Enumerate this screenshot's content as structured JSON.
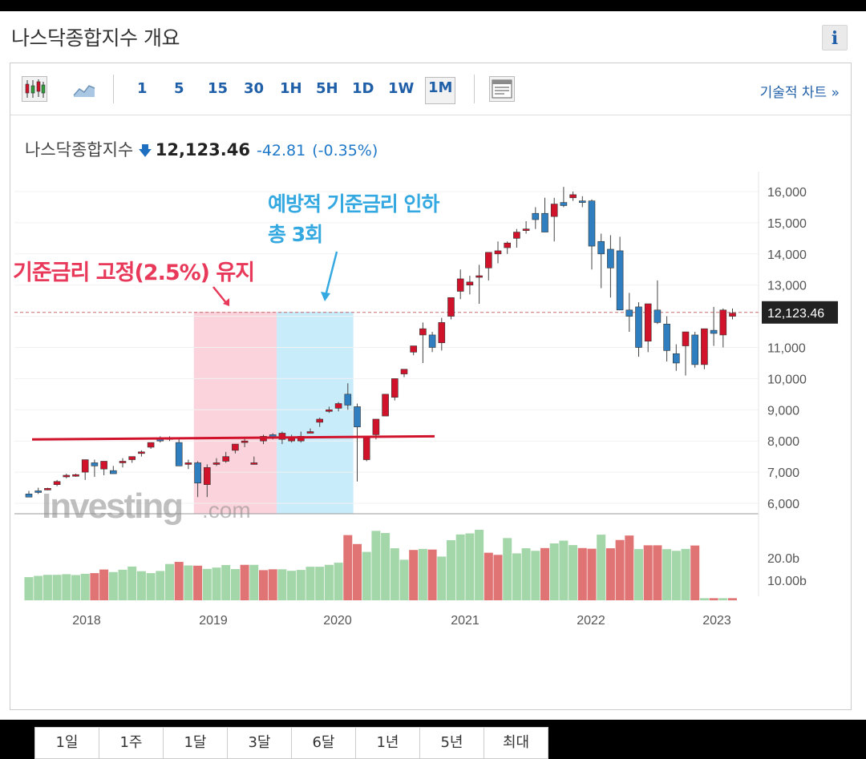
{
  "header": {
    "title": "나스닥종합지수 개요",
    "info_label": "i"
  },
  "toolbar": {
    "timeframes": [
      "1",
      "5",
      "15",
      "30",
      "1H",
      "5H",
      "1D",
      "1W",
      "1M"
    ],
    "active_timeframe": "1M",
    "tech_chart_label": "기술적 차트 »"
  },
  "quote": {
    "name": "나스닥종합지수",
    "price": "12,123.46",
    "change": "-42.81",
    "change_pct": "(-0.35%)"
  },
  "annotations": {
    "red_text": "기준금리 고정(2.5%) 유지",
    "blue_line1": "예방적 기준금리 인하",
    "blue_line2": "총 3회"
  },
  "watermark": {
    "brand": "Investing",
    "suffix": ".com"
  },
  "period_buttons": [
    "1일",
    "1주",
    "1달",
    "3달",
    "6달",
    "1년",
    "5년",
    "최대"
  ],
  "colors": {
    "up": "#2f7fc0",
    "down": "#d0132b",
    "vol_up": "#a3d6a8",
    "vol_down": "#e07373",
    "link": "#1f5fa8",
    "pink_band": "#fbd3dc",
    "blue_band": "#c9ecfb"
  },
  "chart_data": {
    "type": "candlestick",
    "interval": "1M",
    "price_axis": {
      "ticks": [
        6000,
        7000,
        8000,
        9000,
        10000,
        11000,
        12000,
        13000,
        14000,
        15000,
        16000
      ],
      "tick_labels": [
        "6,000",
        "7,000",
        "8,000",
        "9,000",
        "10,000",
        "11,000",
        "",
        "13,000",
        "14,000",
        "15,000",
        "16,000"
      ],
      "current_label": "12,123.46",
      "current_value": 12123.46
    },
    "volume_axis": {
      "tick_labels": [
        "20.0b",
        "10.00b"
      ],
      "ticks": [
        20,
        10
      ]
    },
    "x_labels": [
      "2018",
      "2019",
      "2020",
      "2021",
      "2022",
      "2023"
    ],
    "candles_ohlc": [
      [
        6300,
        6400,
        6200,
        6200
      ],
      [
        6400,
        6500,
        6300,
        6350
      ],
      [
        6450,
        6500,
        6420,
        6480
      ],
      [
        6600,
        6750,
        6550,
        6700
      ],
      [
        6850,
        6950,
        6800,
        6900
      ],
      [
        6900,
        6950,
        6850,
        6920
      ],
      [
        7000,
        7350,
        6750,
        7400
      ],
      [
        7300,
        7400,
        6850,
        7200
      ],
      [
        7100,
        7350,
        6900,
        7350
      ],
      [
        7050,
        7200,
        6950,
        6950
      ],
      [
        7300,
        7450,
        7150,
        7350
      ],
      [
        7400,
        7500,
        7300,
        7500
      ],
      [
        7600,
        7700,
        7500,
        7650
      ],
      [
        7800,
        7950,
        7750,
        7950
      ],
      [
        8100,
        8150,
        7950,
        8000
      ],
      [
        8100,
        8150,
        8000,
        8100
      ],
      [
        7950,
        8100,
        7200,
        7200
      ],
      [
        7250,
        7400,
        7100,
        7300
      ],
      [
        7300,
        7350,
        6200,
        6650
      ],
      [
        6600,
        7250,
        6200,
        7150
      ],
      [
        7300,
        7450,
        7200,
        7300
      ],
      [
        7350,
        7650,
        7300,
        7500
      ],
      [
        7700,
        7900,
        7600,
        7900
      ],
      [
        7950,
        8100,
        7800,
        8000
      ],
      [
        7300,
        7500,
        7300,
        7300
      ],
      [
        8000,
        8200,
        7900,
        8150
      ],
      [
        8200,
        8250,
        8050,
        8100
      ],
      [
        8050,
        8300,
        7900,
        8250
      ],
      [
        8000,
        8200,
        7950,
        8100
      ],
      [
        8000,
        8300,
        7950,
        8150
      ],
      [
        8300,
        8400,
        8250,
        8300
      ],
      [
        8600,
        8750,
        8450,
        8700
      ],
      [
        9000,
        9100,
        8900,
        9000
      ],
      [
        9050,
        9250,
        8950,
        9200
      ],
      [
        9500,
        9850,
        9000,
        9150
      ],
      [
        9100,
        9200,
        6700,
        8450
      ],
      [
        7400,
        8150,
        7350,
        8150
      ],
      [
        8200,
        8700,
        8050,
        8700
      ],
      [
        8800,
        9500,
        8800,
        9500
      ],
      [
        9400,
        10000,
        9300,
        10000
      ],
      [
        10150,
        10300,
        10050,
        10300
      ],
      [
        10850,
        11050,
        10750,
        11050
      ],
      [
        11400,
        11800,
        10500,
        11600
      ],
      [
        11400,
        11500,
        10850,
        11000
      ],
      [
        11150,
        11950,
        10900,
        11800
      ],
      [
        12000,
        12350,
        11900,
        12600
      ],
      [
        12800,
        13500,
        12550,
        13200
      ],
      [
        13000,
        13300,
        12700,
        13100
      ],
      [
        13250,
        13650,
        12400,
        13300
      ],
      [
        13550,
        13850,
        13150,
        14050
      ],
      [
        14000,
        14400,
        13700,
        14100
      ],
      [
        14200,
        14400,
        14000,
        14350
      ],
      [
        14500,
        14800,
        14200,
        14700
      ],
      [
        14750,
        15050,
        14650,
        14800
      ],
      [
        15300,
        15500,
        14800,
        15100
      ],
      [
        15300,
        15800,
        14800,
        14700
      ],
      [
        15200,
        15800,
        14400,
        15600
      ],
      [
        15650,
        16150,
        15500,
        15550
      ],
      [
        15800,
        16000,
        15700,
        15900
      ],
      [
        15700,
        15850,
        15500,
        15650
      ],
      [
        15700,
        15750,
        13500,
        14250
      ],
      [
        14400,
        14650,
        12900,
        14000
      ],
      [
        14150,
        14600,
        12600,
        13550
      ],
      [
        14100,
        14550,
        12900,
        12200
      ],
      [
        12200,
        12750,
        11500,
        12000
      ],
      [
        12300,
        12450,
        10700,
        11000
      ],
      [
        11200,
        12100,
        10850,
        12400
      ],
      [
        12200,
        13150,
        11750,
        11800
      ],
      [
        11750,
        12000,
        10550,
        10900
      ],
      [
        10800,
        11100,
        10250,
        10500
      ],
      [
        11050,
        11400,
        10100,
        11500
      ],
      [
        11400,
        11500,
        10350,
        10450
      ],
      [
        10450,
        11550,
        10300,
        11600
      ],
      [
        11550,
        12300,
        11050,
        11450
      ],
      [
        11400,
        12250,
        11000,
        12200
      ],
      [
        12000,
        12250,
        11900,
        12100
      ]
    ],
    "volume": [
      {
        "v": 10.9,
        "d": "up"
      },
      {
        "v": 11.5,
        "d": "up"
      },
      {
        "v": 12.0,
        "d": "up"
      },
      {
        "v": 12.0,
        "d": "up"
      },
      {
        "v": 12.3,
        "d": "up"
      },
      {
        "v": 11.9,
        "d": "up"
      },
      {
        "v": 12.5,
        "d": "up"
      },
      {
        "v": 12.8,
        "d": "down"
      },
      {
        "v": 14.5,
        "d": "down"
      },
      {
        "v": 13.3,
        "d": "up"
      },
      {
        "v": 14.4,
        "d": "up"
      },
      {
        "v": 15.9,
        "d": "up"
      },
      {
        "v": 13.7,
        "d": "up"
      },
      {
        "v": 12.8,
        "d": "up"
      },
      {
        "v": 13.8,
        "d": "up"
      },
      {
        "v": 17.1,
        "d": "up"
      },
      {
        "v": 18.1,
        "d": "down"
      },
      {
        "v": 16.4,
        "d": "up"
      },
      {
        "v": 16.3,
        "d": "down"
      },
      {
        "v": 14.8,
        "d": "up"
      },
      {
        "v": 15.4,
        "d": "up"
      },
      {
        "v": 16.6,
        "d": "up"
      },
      {
        "v": 14.7,
        "d": "up"
      },
      {
        "v": 16.7,
        "d": "down"
      },
      {
        "v": 16.7,
        "d": "up"
      },
      {
        "v": 14.2,
        "d": "down"
      },
      {
        "v": 14.6,
        "d": "down"
      },
      {
        "v": 14.6,
        "d": "up"
      },
      {
        "v": 13.9,
        "d": "up"
      },
      {
        "v": 14.3,
        "d": "up"
      },
      {
        "v": 15.8,
        "d": "up"
      },
      {
        "v": 15.8,
        "d": "up"
      },
      {
        "v": 16.7,
        "d": "up"
      },
      {
        "v": 17.7,
        "d": "up"
      },
      {
        "v": 30.7,
        "d": "down"
      },
      {
        "v": 26.5,
        "d": "down"
      },
      {
        "v": 22.8,
        "d": "up"
      },
      {
        "v": 32.7,
        "d": "up"
      },
      {
        "v": 31.7,
        "d": "up"
      },
      {
        "v": 24.5,
        "d": "up"
      },
      {
        "v": 19.1,
        "d": "up"
      },
      {
        "v": 23.7,
        "d": "down"
      },
      {
        "v": 24.2,
        "d": "up"
      },
      {
        "v": 23.9,
        "d": "down"
      },
      {
        "v": 20.6,
        "d": "up"
      },
      {
        "v": 28.3,
        "d": "up"
      },
      {
        "v": 31.0,
        "d": "up"
      },
      {
        "v": 31.5,
        "d": "up"
      },
      {
        "v": 33.2,
        "d": "up"
      },
      {
        "v": 22.4,
        "d": "down"
      },
      {
        "v": 21.4,
        "d": "down"
      },
      {
        "v": 29.3,
        "d": "up"
      },
      {
        "v": 22.1,
        "d": "up"
      },
      {
        "v": 24.5,
        "d": "up"
      },
      {
        "v": 23.3,
        "d": "up"
      },
      {
        "v": 24.6,
        "d": "down"
      },
      {
        "v": 26.8,
        "d": "up"
      },
      {
        "v": 28.1,
        "d": "up"
      },
      {
        "v": 26.0,
        "d": "up"
      },
      {
        "v": 24.6,
        "d": "down"
      },
      {
        "v": 24.3,
        "d": "down"
      },
      {
        "v": 30.9,
        "d": "up"
      },
      {
        "v": 24.5,
        "d": "down"
      },
      {
        "v": 28.4,
        "d": "down"
      },
      {
        "v": 30.5,
        "d": "down"
      },
      {
        "v": 24.1,
        "d": "up"
      },
      {
        "v": 25.9,
        "d": "down"
      },
      {
        "v": 25.9,
        "d": "down"
      },
      {
        "v": 24.1,
        "d": "up"
      },
      {
        "v": 23.3,
        "d": "up"
      },
      {
        "v": 24.2,
        "d": "up"
      },
      {
        "v": 25.8,
        "d": "down"
      },
      {
        "v": 1.0,
        "d": "up"
      },
      {
        "v": 1.0,
        "d": "down"
      },
      {
        "v": 1.0,
        "d": "up"
      },
      {
        "v": 1.0,
        "d": "down"
      }
    ],
    "horizontal_lines": [
      {
        "label": "current price",
        "value": 12123.46,
        "style": "dashed"
      },
      {
        "label": "red trend line",
        "value_start": 8050,
        "value_end": 8150,
        "style": "solid"
      }
    ],
    "shaded_regions": [
      {
        "color": "pink",
        "from_index": 18,
        "to_index": 26
      },
      {
        "color": "blue",
        "from_index": 27,
        "to_index": 34
      }
    ]
  }
}
